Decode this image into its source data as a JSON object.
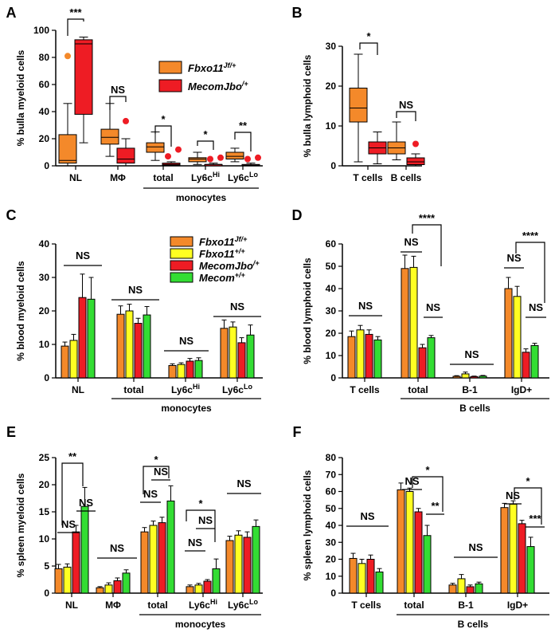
{
  "colors": {
    "fbxo_jf": "#f4892a",
    "fbxo_wt": "#ffff22",
    "mecom_jbo": "#ee1c24",
    "mecom_wt": "#33dd33"
  },
  "chart_data": [
    {
      "panel": "A",
      "type": "box",
      "ylabel": "% bulla myeloid cells",
      "ylim": [
        0,
        100
      ],
      "yticks": [
        0,
        20,
        40,
        60,
        80,
        100
      ],
      "categories": [
        "NL",
        "MΦ",
        "total",
        "Ly6cHi",
        "Ly6cLo"
      ],
      "group_label": "monocytes",
      "legend": [
        "Fbxo11Jf/+",
        "MecomJbo/+"
      ],
      "series": [
        {
          "name": "Fbxo11Jf/+",
          "boxes": [
            {
              "min": 0,
              "q1": 2,
              "median": 4,
              "q3": 23,
              "max": 46,
              "outliers": [
                81
              ]
            },
            {
              "min": 7,
              "q1": 16,
              "median": 21,
              "q3": 27,
              "max": 46,
              "outliers": []
            },
            {
              "min": 4,
              "q1": 10,
              "median": 14,
              "q3": 17,
              "max": 25,
              "outliers": []
            },
            {
              "min": 1,
              "q1": 3,
              "median": 5,
              "q3": 6,
              "max": 10,
              "outliers": []
            },
            {
              "min": 3,
              "q1": 5,
              "median": 7,
              "q3": 10,
              "max": 13,
              "outliers": []
            }
          ]
        },
        {
          "name": "MecomJbo/+",
          "boxes": [
            {
              "min": 17,
              "q1": 38,
              "median": 90,
              "q3": 93,
              "max": 95,
              "outliers": []
            },
            {
              "min": 0,
              "q1": 2,
              "median": 5,
              "q3": 13,
              "max": 20,
              "outliers": [
                33
              ]
            },
            {
              "min": 0,
              "q1": 0.5,
              "median": 1,
              "q3": 2,
              "max": 3,
              "outliers": [
                7,
                12
              ]
            },
            {
              "min": 0,
              "q1": 0,
              "median": 1,
              "q3": 1,
              "max": 2,
              "outliers": [
                5,
                6
              ]
            },
            {
              "min": 0,
              "q1": 0,
              "median": 0.5,
              "q3": 1,
              "max": 2,
              "outliers": [
                5,
                6
              ]
            }
          ]
        }
      ],
      "significance": [
        {
          "cat": "NL",
          "label": "***"
        },
        {
          "cat": "MΦ",
          "label": "NS"
        },
        {
          "cat": "total",
          "label": "*"
        },
        {
          "cat": "Ly6cHi",
          "label": "*"
        },
        {
          "cat": "Ly6cLo",
          "label": "**"
        }
      ]
    },
    {
      "panel": "B",
      "type": "box",
      "ylabel": "% bulla lymphoid cells",
      "ylim": [
        0,
        30
      ],
      "yticks": [
        0,
        10,
        20,
        30
      ],
      "categories": [
        "T cells",
        "B cells"
      ],
      "series": [
        {
          "name": "Fbxo11Jf/+",
          "boxes": [
            {
              "min": 1,
              "q1": 11,
              "median": 14.5,
              "q3": 19.5,
              "max": 28,
              "outliers": []
            },
            {
              "min": 1.5,
              "q1": 3,
              "median": 4.5,
              "q3": 6,
              "max": 11,
              "outliers": []
            }
          ]
        },
        {
          "name": "MecomJbo/+",
          "boxes": [
            {
              "min": 0.5,
              "q1": 3,
              "median": 4.5,
              "q3": 6,
              "max": 8.5,
              "outliers": []
            },
            {
              "min": 0,
              "q1": 0.3,
              "median": 1,
              "q3": 2,
              "max": 3,
              "outliers": [
                5.5
              ]
            }
          ]
        }
      ],
      "significance": [
        {
          "cat": "T cells",
          "label": "*"
        },
        {
          "cat": "B cells",
          "label": "NS"
        }
      ]
    },
    {
      "panel": "C",
      "type": "bar",
      "ylabel": "% blood myeloid cells",
      "ylim": [
        0,
        40
      ],
      "yticks": [
        0,
        10,
        20,
        30,
        40
      ],
      "categories": [
        "NL",
        "total",
        "Ly6cHi",
        "Ly6cLo"
      ],
      "group_label": "monocytes",
      "legend": [
        "Fbxo11Jf/+",
        "Fbxo11+/+",
        "MecomJbo/+",
        "Mecom+/+"
      ],
      "series": [
        {
          "name": "Fbxo11Jf/+",
          "values": [
            9.5,
            19,
            3.7,
            14.8
          ],
          "errors": [
            1.2,
            2.5,
            0.5,
            2.5
          ]
        },
        {
          "name": "Fbxo11+/+",
          "values": [
            11.2,
            20,
            4,
            15.2
          ],
          "errors": [
            1.8,
            2,
            0.5,
            1.5
          ]
        },
        {
          "name": "MecomJbo/+",
          "values": [
            24,
            16.3,
            5,
            10.5
          ],
          "errors": [
            7,
            1.5,
            0.8,
            1.5
          ]
        },
        {
          "name": "Mecom+/+",
          "values": [
            23.5,
            18.8,
            5.2,
            12.8
          ],
          "errors": [
            6.5,
            2.5,
            0.8,
            3
          ]
        }
      ],
      "significance": [
        {
          "cat": "NL",
          "label": "NS"
        },
        {
          "cat": "total",
          "label": "NS"
        },
        {
          "cat": "Ly6cHi",
          "label": "NS"
        },
        {
          "cat": "Ly6cLo",
          "label": "NS"
        }
      ]
    },
    {
      "panel": "D",
      "type": "bar",
      "ylabel": "% blood lymphoid cells",
      "ylim": [
        0,
        60
      ],
      "yticks": [
        0,
        10,
        20,
        30,
        40,
        50,
        60
      ],
      "categories": [
        "T cells",
        "total",
        "B-1",
        "IgD+"
      ],
      "group_label": "B cells",
      "series": [
        {
          "name": "Fbxo11Jf/+",
          "values": [
            18.5,
            49,
            0.7,
            40
          ],
          "errors": [
            2.5,
            6,
            0.3,
            5
          ]
        },
        {
          "name": "Fbxo11+/+",
          "values": [
            21.5,
            49.5,
            1.8,
            36.5
          ],
          "errors": [
            2,
            5,
            0.8,
            4.5
          ]
        },
        {
          "name": "MecomJbo/+",
          "values": [
            19.5,
            13.5,
            0.6,
            11.5
          ],
          "errors": [
            2,
            1.5,
            0.2,
            1.5
          ]
        },
        {
          "name": "Mecom+/+",
          "values": [
            17,
            18,
            0.8,
            14.5
          ],
          "errors": [
            1.5,
            1,
            0.3,
            1
          ]
        }
      ],
      "significance": [
        {
          "cat": "T cells",
          "label": "NS"
        },
        {
          "cat": "total",
          "label": "NS"
        },
        {
          "cat": "total",
          "label": "****"
        },
        {
          "cat": "total",
          "label": "NS"
        },
        {
          "cat": "B-1",
          "label": "NS"
        },
        {
          "cat": "IgD+",
          "label": "NS"
        },
        {
          "cat": "IgD+",
          "label": "****"
        },
        {
          "cat": "IgD+",
          "label": "NS"
        }
      ]
    },
    {
      "panel": "E",
      "type": "bar",
      "ylabel": "% spleen myeloid cells",
      "ylim": [
        0,
        25
      ],
      "yticks": [
        0,
        5,
        10,
        15,
        20,
        25
      ],
      "categories": [
        "NL",
        "MΦ",
        "total",
        "Ly6cHi",
        "Ly6cLo"
      ],
      "group_label": "monocytes",
      "series": [
        {
          "name": "Fbxo11Jf/+",
          "values": [
            4.5,
            1,
            11.3,
            1.2,
            9.7
          ],
          "errors": [
            0.8,
            0.2,
            0.8,
            0.3,
            0.8
          ]
        },
        {
          "name": "Fbxo11+/+",
          "values": [
            4.8,
            1.5,
            12.5,
            1.5,
            10.7
          ],
          "errors": [
            0.6,
            0.4,
            0.8,
            0.3,
            0.8
          ]
        },
        {
          "name": "MecomJbo/+",
          "values": [
            11.3,
            2.3,
            13,
            2.2,
            10.3
          ],
          "errors": [
            1.2,
            0.5,
            1,
            0.3,
            1
          ]
        },
        {
          "name": "Mecom+/+",
          "values": [
            16,
            3.7,
            17,
            4.5,
            12.3
          ],
          "errors": [
            3.5,
            0.6,
            2.8,
            1.8,
            1.2
          ]
        }
      ],
      "significance": [
        {
          "cat": "NL",
          "label": "**"
        },
        {
          "cat": "NL",
          "label": "NS"
        },
        {
          "cat": "NL",
          "label": "NS"
        },
        {
          "cat": "MΦ",
          "label": "NS"
        },
        {
          "cat": "total",
          "label": "*"
        },
        {
          "cat": "total",
          "label": "NS"
        },
        {
          "cat": "total",
          "label": "NS"
        },
        {
          "cat": "Ly6cHi",
          "label": "*"
        },
        {
          "cat": "Ly6cHi",
          "label": "NS"
        },
        {
          "cat": "Ly6cHi",
          "label": "NS"
        },
        {
          "cat": "Ly6cLo",
          "label": "NS"
        }
      ]
    },
    {
      "panel": "F",
      "type": "bar",
      "ylabel": "% spleen lymphoid cells",
      "ylim": [
        0,
        80
      ],
      "yticks": [
        0,
        10,
        20,
        30,
        40,
        50,
        60,
        70,
        80
      ],
      "categories": [
        "T cells",
        "total",
        "B-1",
        "IgD+"
      ],
      "group_label": "B cells",
      "series": [
        {
          "name": "Fbxo11Jf/+",
          "values": [
            20.5,
            61,
            4.8,
            50.5
          ],
          "errors": [
            3,
            4,
            1,
            2.5
          ]
        },
        {
          "name": "Fbxo11+/+",
          "values": [
            17.5,
            60,
            8.5,
            52.5
          ],
          "errors": [
            2.5,
            2,
            2.5,
            2
          ]
        },
        {
          "name": "MecomJbo/+",
          "values": [
            20,
            48,
            3.8,
            41
          ],
          "errors": [
            2.5,
            2,
            1,
            2
          ]
        },
        {
          "name": "Mecom+/+",
          "values": [
            12.5,
            34,
            5.5,
            27.5
          ],
          "errors": [
            2,
            6,
            1,
            5.5
          ]
        }
      ],
      "significance": [
        {
          "cat": "T cells",
          "label": "NS"
        },
        {
          "cat": "total",
          "label": "NS"
        },
        {
          "cat": "total",
          "label": "*"
        },
        {
          "cat": "total",
          "label": "**"
        },
        {
          "cat": "B-1",
          "label": "NS"
        },
        {
          "cat": "IgD+",
          "label": "NS"
        },
        {
          "cat": "IgD+",
          "label": "*"
        },
        {
          "cat": "IgD+",
          "label": "***"
        }
      ]
    }
  ]
}
